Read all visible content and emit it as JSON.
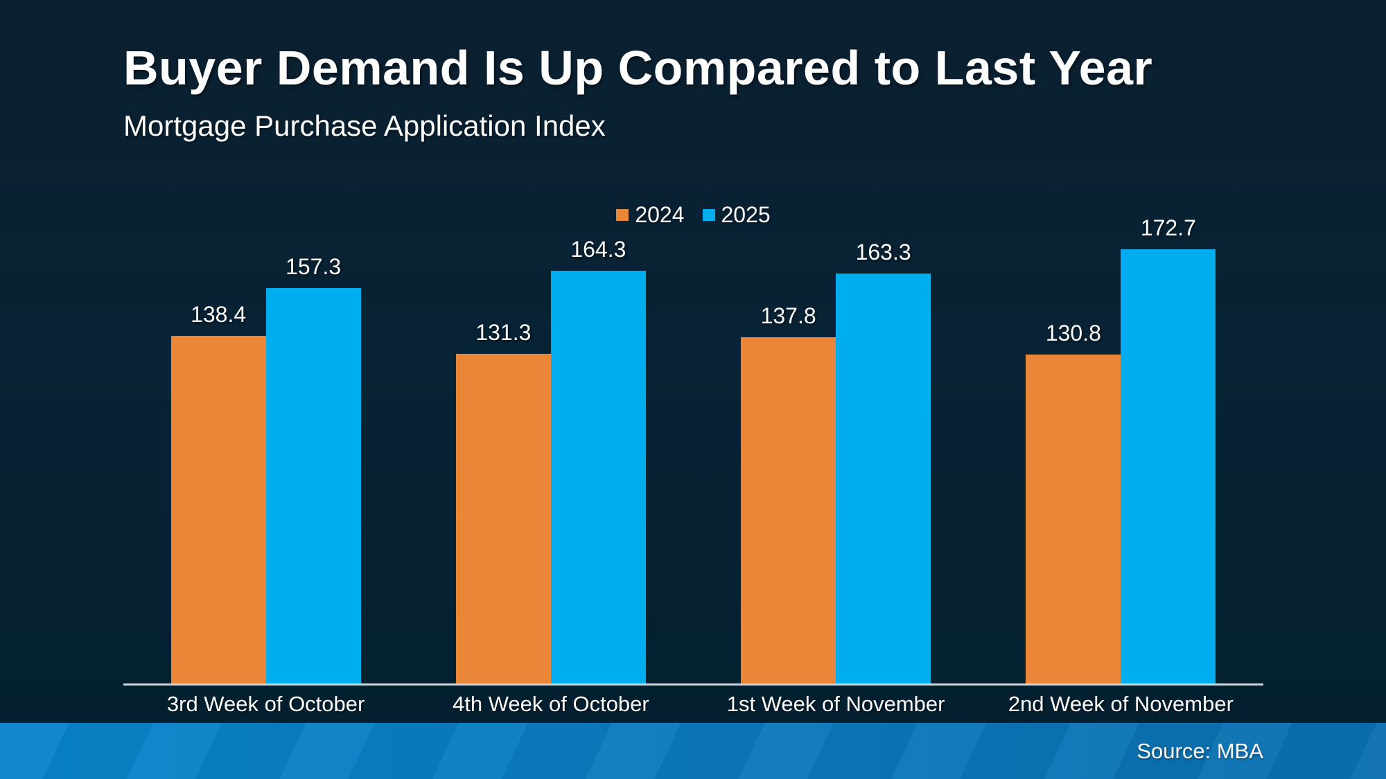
{
  "header": {
    "title": "Buyer Demand Is Up Compared to Last Year",
    "subtitle": "Mortgage Purchase Application Index"
  },
  "footer": {
    "source_label": "Source: MBA"
  },
  "colors": {
    "background_top": "#0b2030",
    "background_bottom": "#03202f",
    "axis_line": "#cfd4da",
    "footer_band_left": "#0884cb",
    "footer_band_right": "#0a6fae",
    "series_2024": "#EA8638",
    "series_2025": "#00AEEF",
    "text": "#ffffff"
  },
  "chart_data": {
    "type": "bar",
    "title": "Buyer Demand Is Up Compared to Last Year",
    "subtitle": "Mortgage Purchase Application Index",
    "categories": [
      "3rd Week of October",
      "4th Week of October",
      "1st Week of November",
      "2nd Week of November"
    ],
    "series": [
      {
        "name": "2024",
        "color": "#EA8638",
        "values": [
          138.4,
          131.3,
          137.8,
          130.8
        ]
      },
      {
        "name": "2025",
        "color": "#00AEEF",
        "values": [
          157.3,
          164.3,
          163.3,
          172.7
        ]
      }
    ],
    "xlabel": "",
    "ylabel": "",
    "ylim": [
      0,
      180
    ],
    "grid": false,
    "legend_position": "top-center",
    "bar_labels": true
  }
}
